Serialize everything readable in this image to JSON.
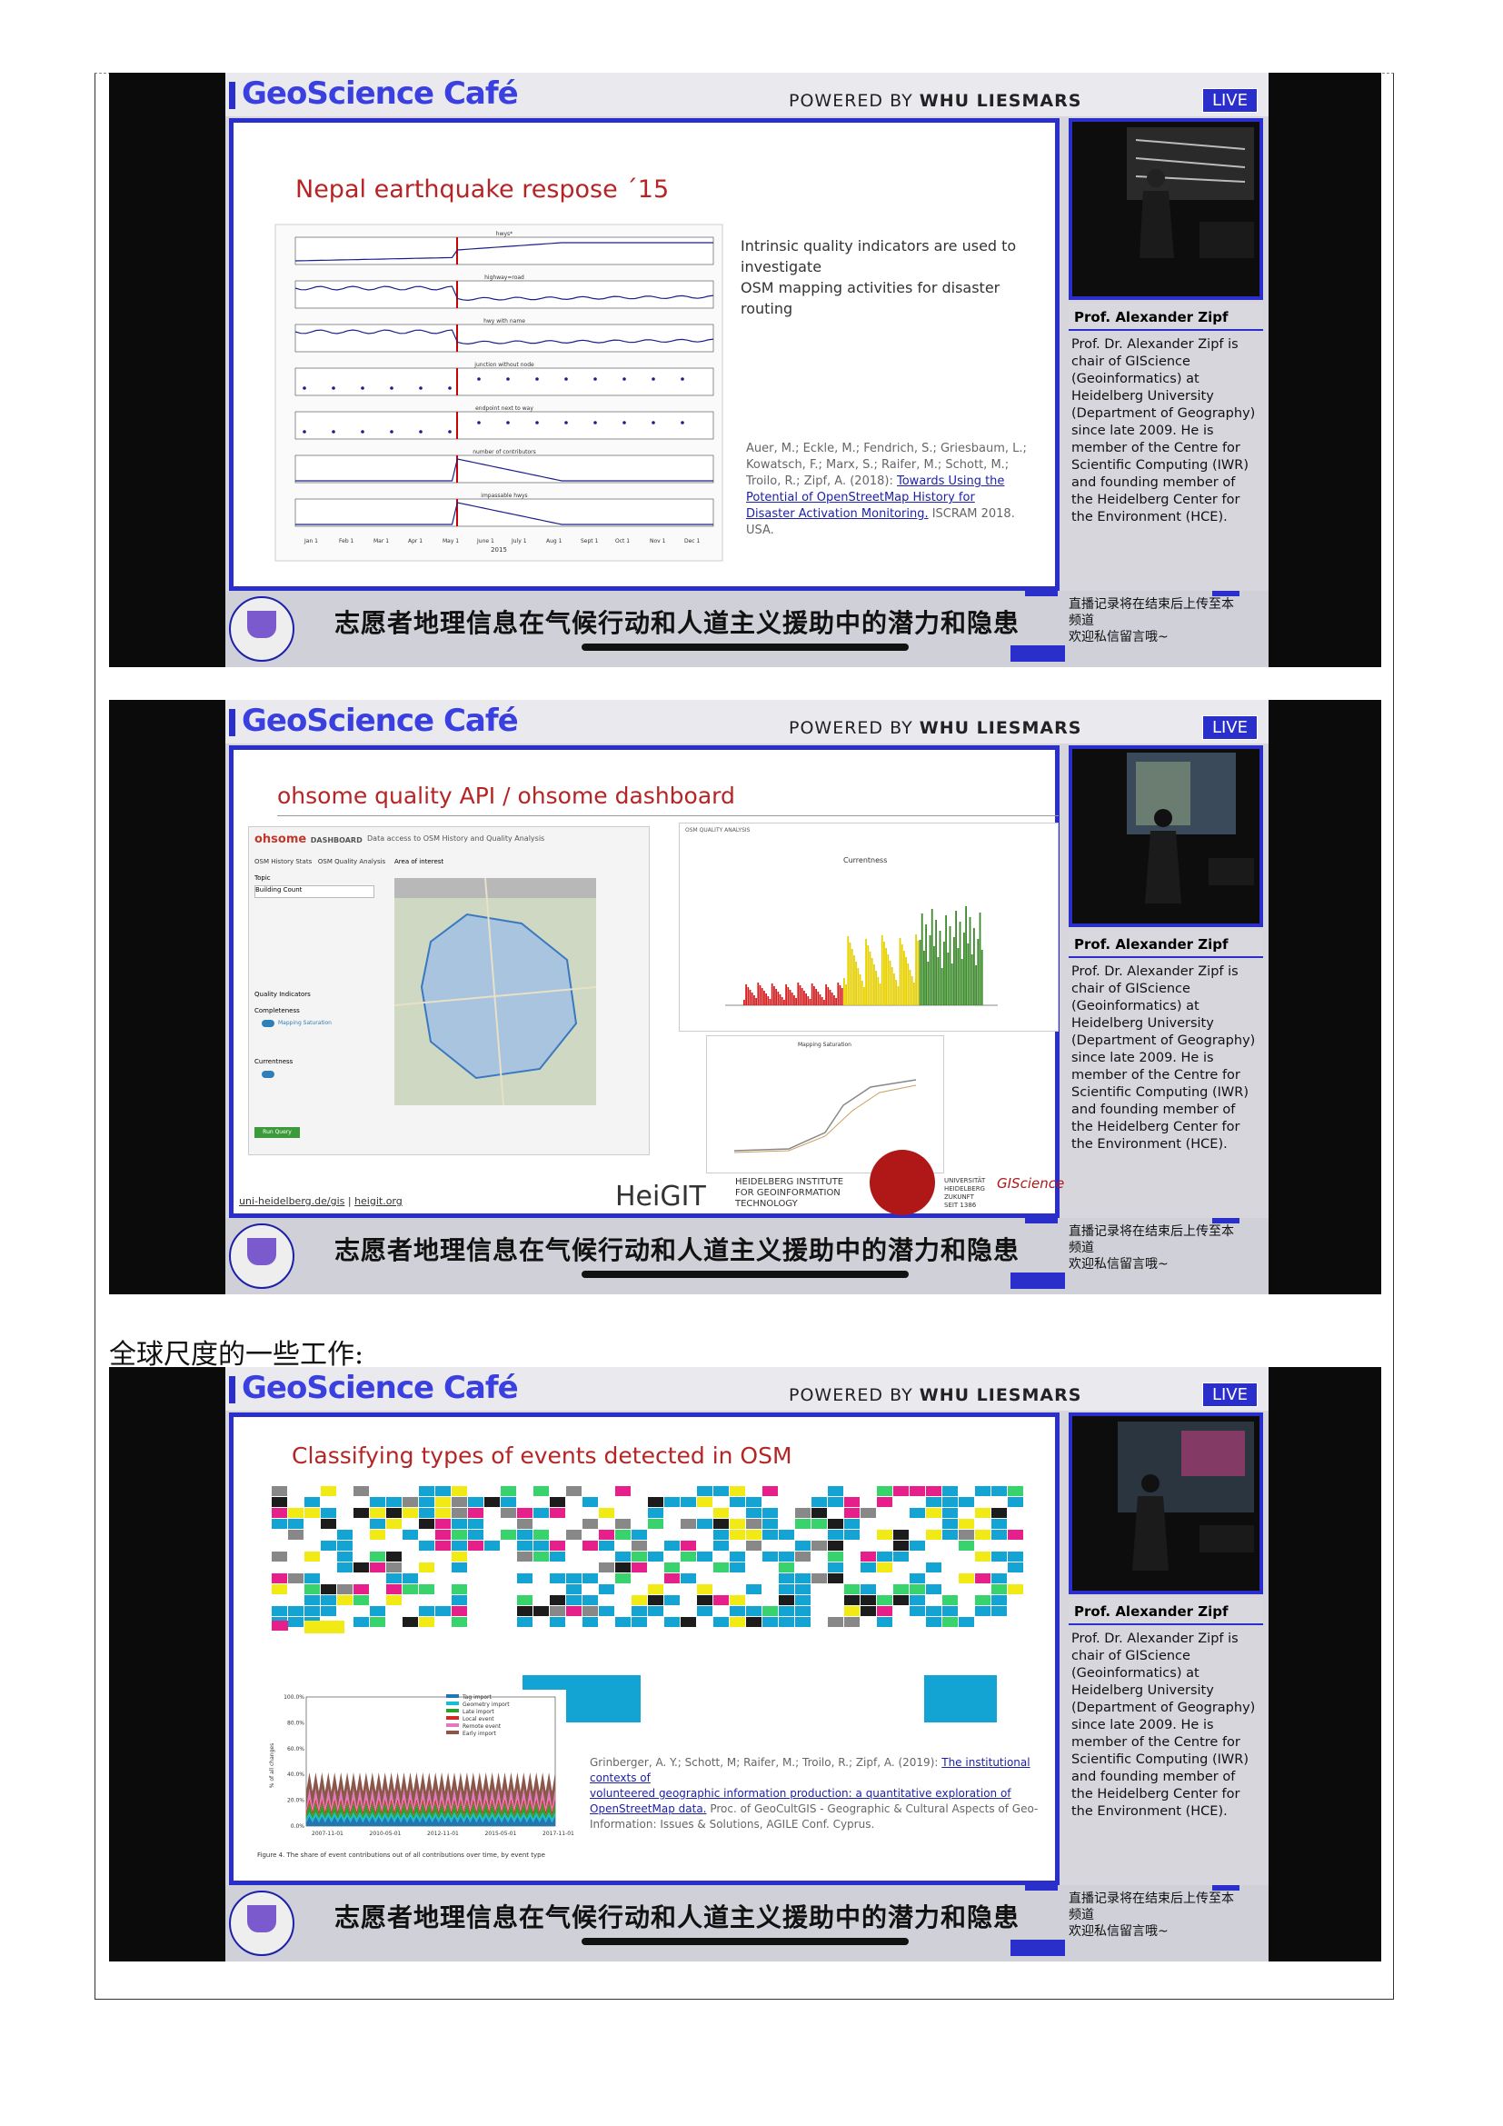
{
  "section_label": "全球尺度的一些工作:",
  "common": {
    "logo_main": "GeoScience ",
    "logo_cafe": "Café",
    "powered_by": "POWERED BY ",
    "powered_org": "WHU LIESMARS",
    "live": "LIVE",
    "speaker_name": "Prof. Alexander Zipf",
    "speaker_bio": "Prof. Dr. Alexander Zipf is chair of GIScience (Geoinformatics) at Heidelberg University (Department of Geography) since late 2009. He is member of the Centre for Scientific Computing (IWR) and founding member of the Heidelberg Center for the Environment (HCE).",
    "caption": "志愿者地理信息在气候行动和人道主义援助中的潜力和隐患",
    "note_line1": "直播记录将在结束后上传至本",
    "note_line2": "频道",
    "note_line3": "欢迎私信留言哦~"
  },
  "slide1": {
    "title": "Nepal earthquake respose ´15",
    "text_line1": "Intrinsic quality indicators are used to",
    "text_line2": "investigate",
    "text_line3": "OSM mapping activities for disaster",
    "text_line4": "routing",
    "ref_line1": "Auer, M.; Eckle, M.; Fendrich, S.; Griesbaum, L.;",
    "ref_line2": "Kowatsch, F.; Marx, S.; Raifer, M.; Schott, M.;",
    "ref_line3": "Troilo, R.; Zipf, A. (2018):",
    "ref_link1": "Towards Using the",
    "ref_link2": "Potential of OpenStreetMap History for",
    "ref_link3": "Disaster Activation Monitoring.",
    "ref_end": " ISCRAM 2018.",
    "ref_country": "USA.",
    "panels": [
      "hwys*",
      "highway=road",
      "hwy with name",
      "junction without node",
      "endpoint next to way",
      "number of contributors",
      "impassable hwys"
    ],
    "months": [
      "Jan 1",
      "Feb 1",
      "Mar 1",
      "Apr 1",
      "May 1",
      "June 1",
      "July 1",
      "Aug 1",
      "Sept 1",
      "Oct 1",
      "Nov 1",
      "Dec 1"
    ],
    "year": "2015"
  },
  "slide2": {
    "title": "ohsome quality API / ohsome dashboard",
    "dash_logo": "ohsome",
    "dash_sub": "DASHBOARD",
    "dash_tag": "Data access to OSM History and Quality Analysis",
    "tab1": "OSM History Stats",
    "tab2": "OSM Quality Analysis",
    "topic_label": "Topic",
    "topic_value": "Building Count",
    "area_label": "Area of interest",
    "quality_label": "Quality Indicators",
    "completeness": "Completeness",
    "mapping_saturation": "Mapping Saturation",
    "currentness_label": "Currentness",
    "run_button": "Run Query",
    "chart_title": "Currentness",
    "chart2_title": "Mapping Saturation",
    "heigit_tab": "OSM QUALITY ANALYSIS",
    "link1": "uni-heidelberg.de/gis",
    "link_sep": " | ",
    "link2": "heigit.org",
    "heigit": "HeiGIT",
    "heigit_full1": "HEIDELBERG INSTITUTE",
    "heigit_full2": "FOR GEOINFORMATION",
    "heigit_full3": "TECHNOLOGY",
    "uni1": "UNIVERSITÄT",
    "uni2": "HEIDELBERG",
    "uni3": "ZUKUNFT",
    "uni4": "SEIT 1386",
    "giscience": "GIScience"
  },
  "slide3": {
    "title": "Classifying types of events detected in OSM",
    "legend": [
      "Tag import",
      "Geometry import",
      "Late import",
      "Local event",
      "Remote event",
      "Early import"
    ],
    "legend_colors": [
      "#1f77b4",
      "#17becf",
      "#2ca02c",
      "#d62728",
      "#e377c2",
      "#8c564b"
    ],
    "yticks": [
      "100.0%",
      "80.0%",
      "60.0%",
      "40.0%",
      "20.0%",
      "0.0%"
    ],
    "xticks": [
      "2007-11-01",
      "2010-05-01",
      "2012-11-01",
      "2015-05-01",
      "2017-11-01"
    ],
    "figure_caption": "Figure 4. The share of event contributions out of all contributions over time, by event type",
    "ylabel": "% of all changes",
    "ref_line1": "Grinberger, A. Y.; Schott, M; Raifer, M.; Troilo, R.; Zipf, A. (2019):",
    "ref_link1": "The institutional contexts of",
    "ref_link2": "volunteered geographic information production: a quantitative exploration of",
    "ref_link3": "OpenStreetMap data.",
    "ref_line3b": " Proc. of GeoCultGIS - Geographic & Cultural Aspects of Geo-",
    "ref_line4": "Information: Issues & Solutions, AGILE Conf. Cyprus."
  }
}
